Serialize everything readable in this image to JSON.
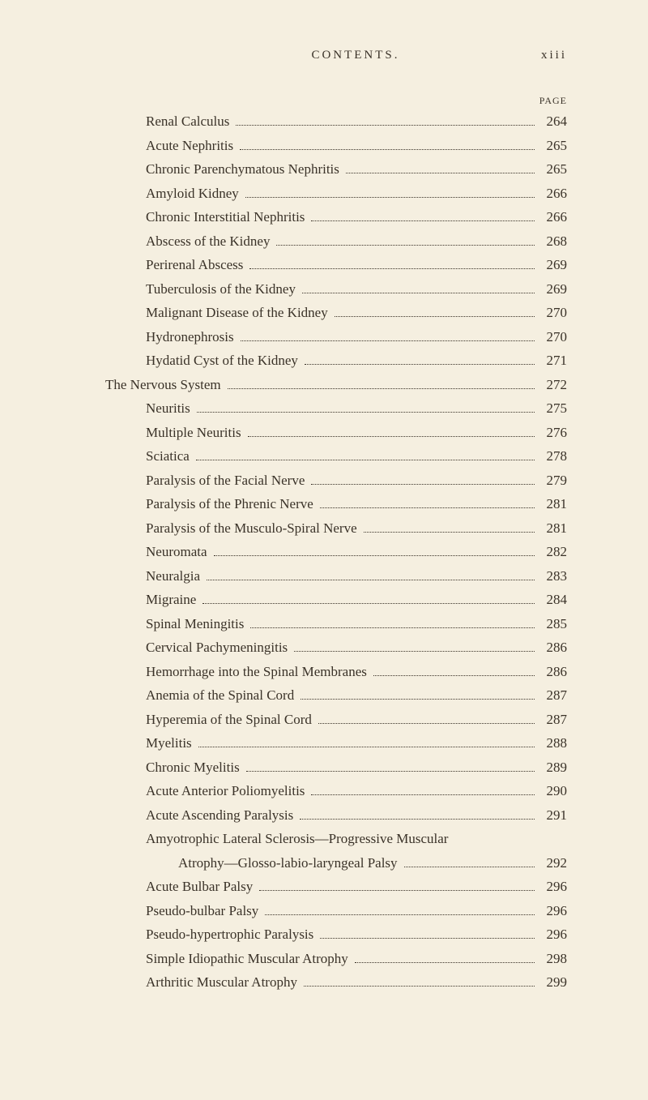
{
  "header": {
    "title": "CONTENTS.",
    "page_roman": "xiii",
    "page_label": "PAGE"
  },
  "entries": [
    {
      "text": "Renal Calculus",
      "page": "264",
      "indent": 1
    },
    {
      "text": "Acute Nephritis",
      "page": "265",
      "indent": 1
    },
    {
      "text": "Chronic Parenchymatous Nephritis",
      "page": "265",
      "indent": 1
    },
    {
      "text": "Amyloid Kidney",
      "page": "266",
      "indent": 1
    },
    {
      "text": "Chronic Interstitial Nephritis",
      "page": "266",
      "indent": 1
    },
    {
      "text": "Abscess of the Kidney",
      "page": "268",
      "indent": 1
    },
    {
      "text": "Perirenal Abscess",
      "page": "269",
      "indent": 1
    },
    {
      "text": "Tuberculosis of the Kidney",
      "page": "269",
      "indent": 1
    },
    {
      "text": "Malignant Disease of the Kidney",
      "page": "270",
      "indent": 1
    },
    {
      "text": "Hydronephrosis",
      "page": "270",
      "indent": 1
    },
    {
      "text": "Hydatid Cyst of the Kidney",
      "page": "271",
      "indent": 1
    },
    {
      "text": "The Nervous System",
      "page": "272",
      "indent": 0
    },
    {
      "text": "Neuritis",
      "page": "275",
      "indent": 1
    },
    {
      "text": "Multiple Neuritis",
      "page": "276",
      "indent": 1
    },
    {
      "text": "Sciatica",
      "page": "278",
      "indent": 1
    },
    {
      "text": "Paralysis of the Facial Nerve",
      "page": "279",
      "indent": 1
    },
    {
      "text": "Paralysis of the Phrenic Nerve",
      "page": "281",
      "indent": 1
    },
    {
      "text": "Paralysis of the Musculo-Spiral Nerve",
      "page": "281",
      "indent": 1
    },
    {
      "text": "Neuromata",
      "page": "282",
      "indent": 1
    },
    {
      "text": "Neuralgia",
      "page": "283",
      "indent": 1
    },
    {
      "text": "Migraine",
      "page": "284",
      "indent": 1
    },
    {
      "text": "Spinal Meningitis",
      "page": "285",
      "indent": 1
    },
    {
      "text": "Cervical Pachymeningitis",
      "page": "286",
      "indent": 1
    },
    {
      "text": "Hemorrhage into the Spinal Membranes",
      "page": "286",
      "indent": 1
    },
    {
      "text": "Anemia of the Spinal Cord",
      "page": "287",
      "indent": 1
    },
    {
      "text": "Hyperemia of the Spinal Cord",
      "page": "287",
      "indent": 1
    },
    {
      "text": "Myelitis",
      "page": "288",
      "indent": 1
    },
    {
      "text": "Chronic Myelitis",
      "page": "289",
      "indent": 1
    },
    {
      "text": "Acute Anterior Poliomyelitis",
      "page": "290",
      "indent": 1
    },
    {
      "text": "Acute Ascending Paralysis",
      "page": "291",
      "indent": 1
    },
    {
      "text": "Amyotrophic Lateral Sclerosis—Progressive Muscular",
      "page": "",
      "indent": 1,
      "no_dots": true
    },
    {
      "text": "Atrophy—Glosso-labio-laryngeal Palsy",
      "page": "292",
      "indent": 2
    },
    {
      "text": "Acute Bulbar Palsy",
      "page": "296",
      "indent": 1
    },
    {
      "text": "Pseudo-bulbar Palsy",
      "page": "296",
      "indent": 1
    },
    {
      "text": "Pseudo-hypertrophic Paralysis",
      "page": "296",
      "indent": 1
    },
    {
      "text": "Simple Idiopathic Muscular Atrophy",
      "page": "298",
      "indent": 1
    },
    {
      "text": "Arthritic Muscular Atrophy",
      "page": "299",
      "indent": 1
    }
  ]
}
